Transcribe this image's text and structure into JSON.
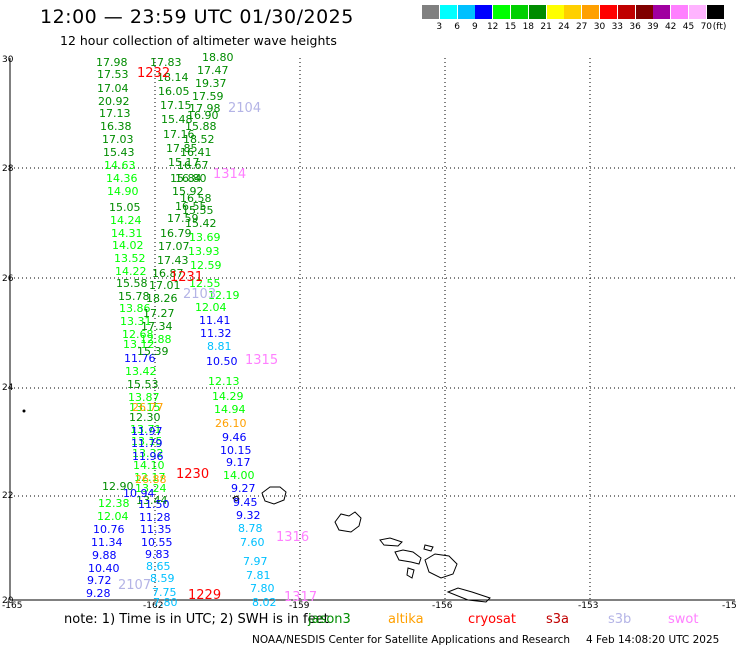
{
  "title": "12:00 — 23:59 UTC 01/30/2025",
  "subtitle": "12 hour collection of altimeter wave heights",
  "colorbar": {
    "colors": [
      "#808080",
      "#00ffff",
      "#00c0ff",
      "#0000ff",
      "#00ff00",
      "#00d000",
      "#008c00",
      "#ffff00",
      "#ffd000",
      "#ffa000",
      "#ff0000",
      "#c00000",
      "#800000",
      "#a000a0",
      "#ff80ff",
      "#ffb4ff",
      "#000000"
    ],
    "labels": [
      "3",
      "6",
      "9",
      "12",
      "15",
      "18",
      "21",
      "24",
      "27",
      "30",
      "33",
      "36",
      "39",
      "42",
      "45",
      "70"
    ],
    "unit": "(ft)"
  },
  "axes": {
    "y_ticks": [
      "30",
      "28",
      "26",
      "24",
      "22",
      "20"
    ],
    "x_ticks": [
      "-165",
      "-162",
      "-159",
      "-156",
      "-153",
      "-15"
    ]
  },
  "pass_labels": [
    {
      "text": "1232",
      "color": "#ff0000"
    },
    {
      "text": "2104",
      "color": "#b4b4e6"
    },
    {
      "text": "1314",
      "color": "#ff80ff"
    },
    {
      "text": "1231",
      "color": "#ff0000"
    },
    {
      "text": "2103",
      "color": "#b4b4e6"
    },
    {
      "text": "1315",
      "color": "#ff80ff"
    },
    {
      "text": "1230",
      "color": "#ff0000"
    },
    {
      "text": "1316",
      "color": "#ff80ff"
    },
    {
      "text": "2107",
      "color": "#b4b4e6"
    },
    {
      "text": "1229",
      "color": "#ff0000"
    },
    {
      "text": "1317",
      "color": "#ff80ff"
    }
  ],
  "wave_heights": [
    {
      "v": "17.98",
      "c": "#008c00"
    },
    {
      "v": "17.53",
      "c": "#008c00"
    },
    {
      "v": "17.04",
      "c": "#008c00"
    },
    {
      "v": "20.92",
      "c": "#008c00"
    },
    {
      "v": "17.13",
      "c": "#008c00"
    },
    {
      "v": "16.38",
      "c": "#008c00"
    },
    {
      "v": "17.03",
      "c": "#008c00"
    },
    {
      "v": "15.43",
      "c": "#008c00"
    },
    {
      "v": "14.63",
      "c": "#00ff00"
    },
    {
      "v": "14.36",
      "c": "#00ff00"
    },
    {
      "v": "14.90",
      "c": "#00ff00"
    },
    {
      "v": "15.05",
      "c": "#008c00"
    },
    {
      "v": "14.24",
      "c": "#00ff00"
    },
    {
      "v": "14.31",
      "c": "#00ff00"
    },
    {
      "v": "14.02",
      "c": "#00ff00"
    },
    {
      "v": "13.52",
      "c": "#00ff00"
    },
    {
      "v": "14.22",
      "c": "#00ff00"
    },
    {
      "v": "15.58",
      "c": "#008c00"
    },
    {
      "v": "15.78",
      "c": "#008c00"
    },
    {
      "v": "13.86",
      "c": "#00ff00"
    },
    {
      "v": "13.31",
      "c": "#00ff00"
    },
    {
      "v": "12.68",
      "c": "#00ff00"
    },
    {
      "v": "13.12",
      "c": "#00ff00"
    },
    {
      "v": "11.76",
      "c": "#0000ff"
    },
    {
      "v": "13.42",
      "c": "#00ff00"
    },
    {
      "v": "15.53",
      "c": "#008c00"
    },
    {
      "v": "13.87",
      "c": "#00ff00"
    },
    {
      "v": "13.15",
      "c": "#00ff00"
    },
    {
      "v": "12.30",
      "c": "#008c00"
    },
    {
      "v": "13.71",
      "c": "#00ff00"
    },
    {
      "v": "13.15",
      "c": "#00ff00"
    },
    {
      "v": "13.32",
      "c": "#00ff00"
    },
    {
      "v": "14.10",
      "c": "#00ff00"
    },
    {
      "v": "12.17",
      "c": "#00ff00"
    },
    {
      "v": "13.24",
      "c": "#00ff00"
    },
    {
      "v": "13.44",
      "c": "#008c00"
    },
    {
      "v": "12.90",
      "c": "#008c00"
    },
    {
      "v": "12.38",
      "c": "#00ff00"
    },
    {
      "v": "12.04",
      "c": "#00ff00"
    },
    {
      "v": "10.76",
      "c": "#0000ff"
    },
    {
      "v": "11.34",
      "c": "#0000ff"
    },
    {
      "v": "9.88",
      "c": "#0000ff"
    },
    {
      "v": "10.40",
      "c": "#0000ff"
    },
    {
      "v": "9.72",
      "c": "#0000ff"
    },
    {
      "v": "9.28",
      "c": "#0000ff"
    },
    {
      "v": "17.83",
      "c": "#008c00"
    },
    {
      "v": "18.14",
      "c": "#008c00"
    },
    {
      "v": "16.05",
      "c": "#008c00"
    },
    {
      "v": "17.15",
      "c": "#008c00"
    },
    {
      "v": "15.48",
      "c": "#008c00"
    },
    {
      "v": "17.16",
      "c": "#008c00"
    },
    {
      "v": "17.85",
      "c": "#008c00"
    },
    {
      "v": "15.17",
      "c": "#008c00"
    },
    {
      "v": "15.84",
      "c": "#008c00"
    },
    {
      "v": "15.92",
      "c": "#008c00"
    },
    {
      "v": "16.55",
      "c": "#008c00"
    },
    {
      "v": "17.59",
      "c": "#008c00"
    },
    {
      "v": "16.79",
      "c": "#008c00"
    },
    {
      "v": "17.07",
      "c": "#008c00"
    },
    {
      "v": "17.43",
      "c": "#008c00"
    },
    {
      "v": "16.87",
      "c": "#008c00"
    },
    {
      "v": "17.01",
      "c": "#008c00"
    },
    {
      "v": "18.26",
      "c": "#008c00"
    },
    {
      "v": "17.27",
      "c": "#008c00"
    },
    {
      "v": "17.34",
      "c": "#008c00"
    },
    {
      "v": "12.88",
      "c": "#00ff00"
    },
    {
      "v": "15.39",
      "c": "#008c00"
    },
    {
      "v": "26.77",
      "c": "#ffa000"
    },
    {
      "v": "11.97",
      "c": "#0000ff"
    },
    {
      "v": "11.79",
      "c": "#0000ff"
    },
    {
      "v": "11.96",
      "c": "#0000ff"
    },
    {
      "v": "26.88",
      "c": "#ffa000"
    },
    {
      "v": "10.94",
      "c": "#0000ff"
    },
    {
      "v": "11.50",
      "c": "#0000ff"
    },
    {
      "v": "11.28",
      "c": "#0000ff"
    },
    {
      "v": "11.35",
      "c": "#0000ff"
    },
    {
      "v": "10.55",
      "c": "#0000ff"
    },
    {
      "v": "9.83",
      "c": "#0000ff"
    },
    {
      "v": "8.65",
      "c": "#00c0ff"
    },
    {
      "v": "8.59",
      "c": "#00c0ff"
    },
    {
      "v": "7.75",
      "c": "#00c0ff"
    },
    {
      "v": "7.80",
      "c": "#00c0ff"
    },
    {
      "v": "18.80",
      "c": "#008c00"
    },
    {
      "v": "17.47",
      "c": "#008c00"
    },
    {
      "v": "19.37",
      "c": "#008c00"
    },
    {
      "v": "17.59",
      "c": "#008c00"
    },
    {
      "v": "17.98",
      "c": "#008c00"
    },
    {
      "v": "16.90",
      "c": "#008c00"
    },
    {
      "v": "15.88",
      "c": "#008c00"
    },
    {
      "v": "18.52",
      "c": "#008c00"
    },
    {
      "v": "16.41",
      "c": "#008c00"
    },
    {
      "v": "16.67",
      "c": "#008c00"
    },
    {
      "v": "16.80",
      "c": "#008c00"
    },
    {
      "v": "16.58",
      "c": "#008c00"
    },
    {
      "v": "15.55",
      "c": "#008c00"
    },
    {
      "v": "15.42",
      "c": "#008c00"
    },
    {
      "v": "13.69",
      "c": "#00ff00"
    },
    {
      "v": "13.93",
      "c": "#00ff00"
    },
    {
      "v": "12.59",
      "c": "#00ff00"
    },
    {
      "v": "12.55",
      "c": "#00ff00"
    },
    {
      "v": "12.19",
      "c": "#00ff00"
    },
    {
      "v": "12.04",
      "c": "#00ff00"
    },
    {
      "v": "11.41",
      "c": "#0000ff"
    },
    {
      "v": "11.32",
      "c": "#0000ff"
    },
    {
      "v": "8.81",
      "c": "#00c0ff"
    },
    {
      "v": "10.50",
      "c": "#0000ff"
    },
    {
      "v": "12.13",
      "c": "#00ff00"
    },
    {
      "v": "14.29",
      "c": "#00ff00"
    },
    {
      "v": "14.94",
      "c": "#00ff00"
    },
    {
      "v": "26.10",
      "c": "#ffa000"
    },
    {
      "v": "9.46",
      "c": "#0000ff"
    },
    {
      "v": "10.15",
      "c": "#0000ff"
    },
    {
      "v": "9.17",
      "c": "#0000ff"
    },
    {
      "v": "14.00",
      "c": "#00ff00"
    },
    {
      "v": "9.27",
      "c": "#0000ff"
    },
    {
      "v": "9.45",
      "c": "#0000ff"
    },
    {
      "v": "9.32",
      "c": "#0000ff"
    },
    {
      "v": "8.78",
      "c": "#00c0ff"
    },
    {
      "v": "7.60",
      "c": "#00c0ff"
    },
    {
      "v": "7.97",
      "c": "#00c0ff"
    },
    {
      "v": "7.81",
      "c": "#00c0ff"
    },
    {
      "v": "7.80",
      "c": "#00c0ff"
    },
    {
      "v": "8.02",
      "c": "#00c0ff"
    }
  ],
  "note": "note:  1) Time is in UTC; 2) SWH is in feet",
  "legend": [
    {
      "name": "jason3",
      "color": "#008c00"
    },
    {
      "name": "altika",
      "color": "#ffa000"
    },
    {
      "name": "cryosat",
      "color": "#ff0000"
    },
    {
      "name": "s3a",
      "color": "#c00000"
    },
    {
      "name": "s3b",
      "color": "#b4b4e6"
    },
    {
      "name": "swot",
      "color": "#ff80ff"
    }
  ],
  "credit": "NOAA/NESDIS Center for Satellite Applications and Research",
  "stamp": "4 Feb 14:08:20 UTC 2025"
}
